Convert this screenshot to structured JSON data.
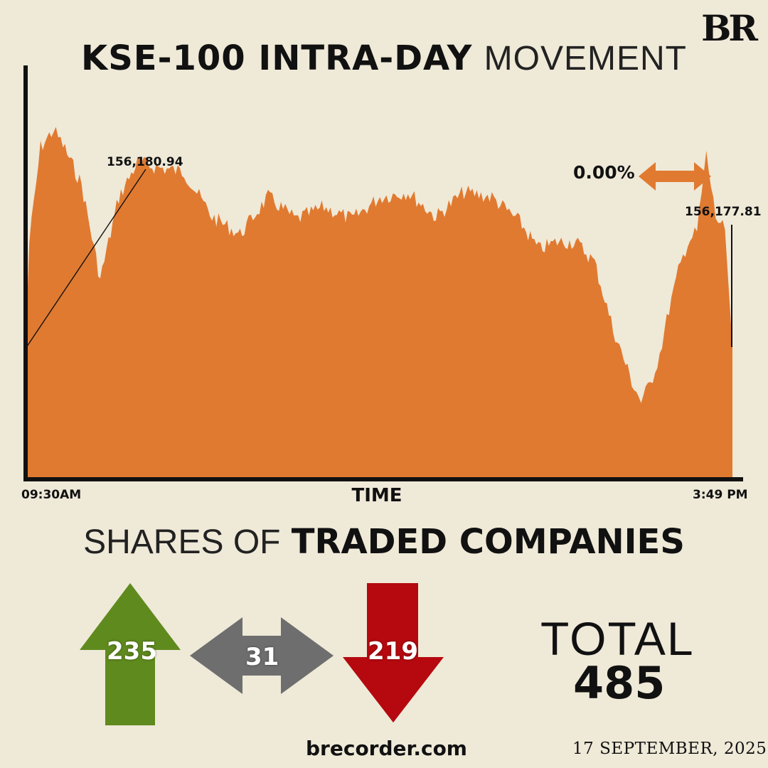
{
  "brand": {
    "logo": "BR",
    "website": "brecorder.com",
    "date": "17 SEPTEMBER, 2025"
  },
  "header": {
    "title_bold": "KSE-100 INTRA-DAY",
    "title_light": "MOVEMENT"
  },
  "colors": {
    "area": "#e07a30",
    "up": "#5f8a1d",
    "unchanged": "#6e6e6e",
    "down": "#b5090f",
    "background": "#efe9d8"
  },
  "chart_data": {
    "type": "area",
    "title": "KSE-100 INTRA-DAY MOVEMENT",
    "xlabel": "TIME",
    "x_start_label": "09:30AM",
    "x_end_label": "3:49 PM",
    "open_label": "156,180.94",
    "close_label": "156,177.81",
    "change_label": "0.00%",
    "grid": false,
    "x": [
      "09:30",
      "09:32",
      "09:38",
      "09:45",
      "09:50",
      "10:00",
      "10:10",
      "10:20",
      "10:30",
      "10:40",
      "10:55",
      "11:10",
      "11:25",
      "11:40",
      "11:55",
      "12:10",
      "12:25",
      "12:40",
      "12:55",
      "13:10",
      "13:25",
      "13:40",
      "13:55",
      "14:05",
      "14:15",
      "14:25",
      "14:35",
      "14:45",
      "14:55",
      "15:00",
      "15:05",
      "15:10",
      "15:15",
      "15:20",
      "15:25",
      "15:30",
      "15:35",
      "15:40",
      "15:45",
      "15:49"
    ],
    "y": [
      156181,
      156600,
      156980,
      157050,
      156990,
      156830,
      156450,
      156780,
      156920,
      156900,
      156880,
      156700,
      156630,
      156780,
      156690,
      156740,
      156690,
      156780,
      156800,
      156700,
      156800,
      156780,
      156680,
      156570,
      156600,
      156600,
      156520,
      156250,
      156040,
      155960,
      156030,
      156150,
      156330,
      156480,
      156600,
      156640,
      156950,
      156700,
      156650,
      156178
    ],
    "ylim": [
      155650,
      157300
    ]
  },
  "breadth": {
    "title_light": "SHARES OF",
    "title_bold": "TRADED COMPANIES",
    "up": "235",
    "unchanged": "31",
    "down": "219",
    "total_label": "TOTAL",
    "total": "485"
  }
}
